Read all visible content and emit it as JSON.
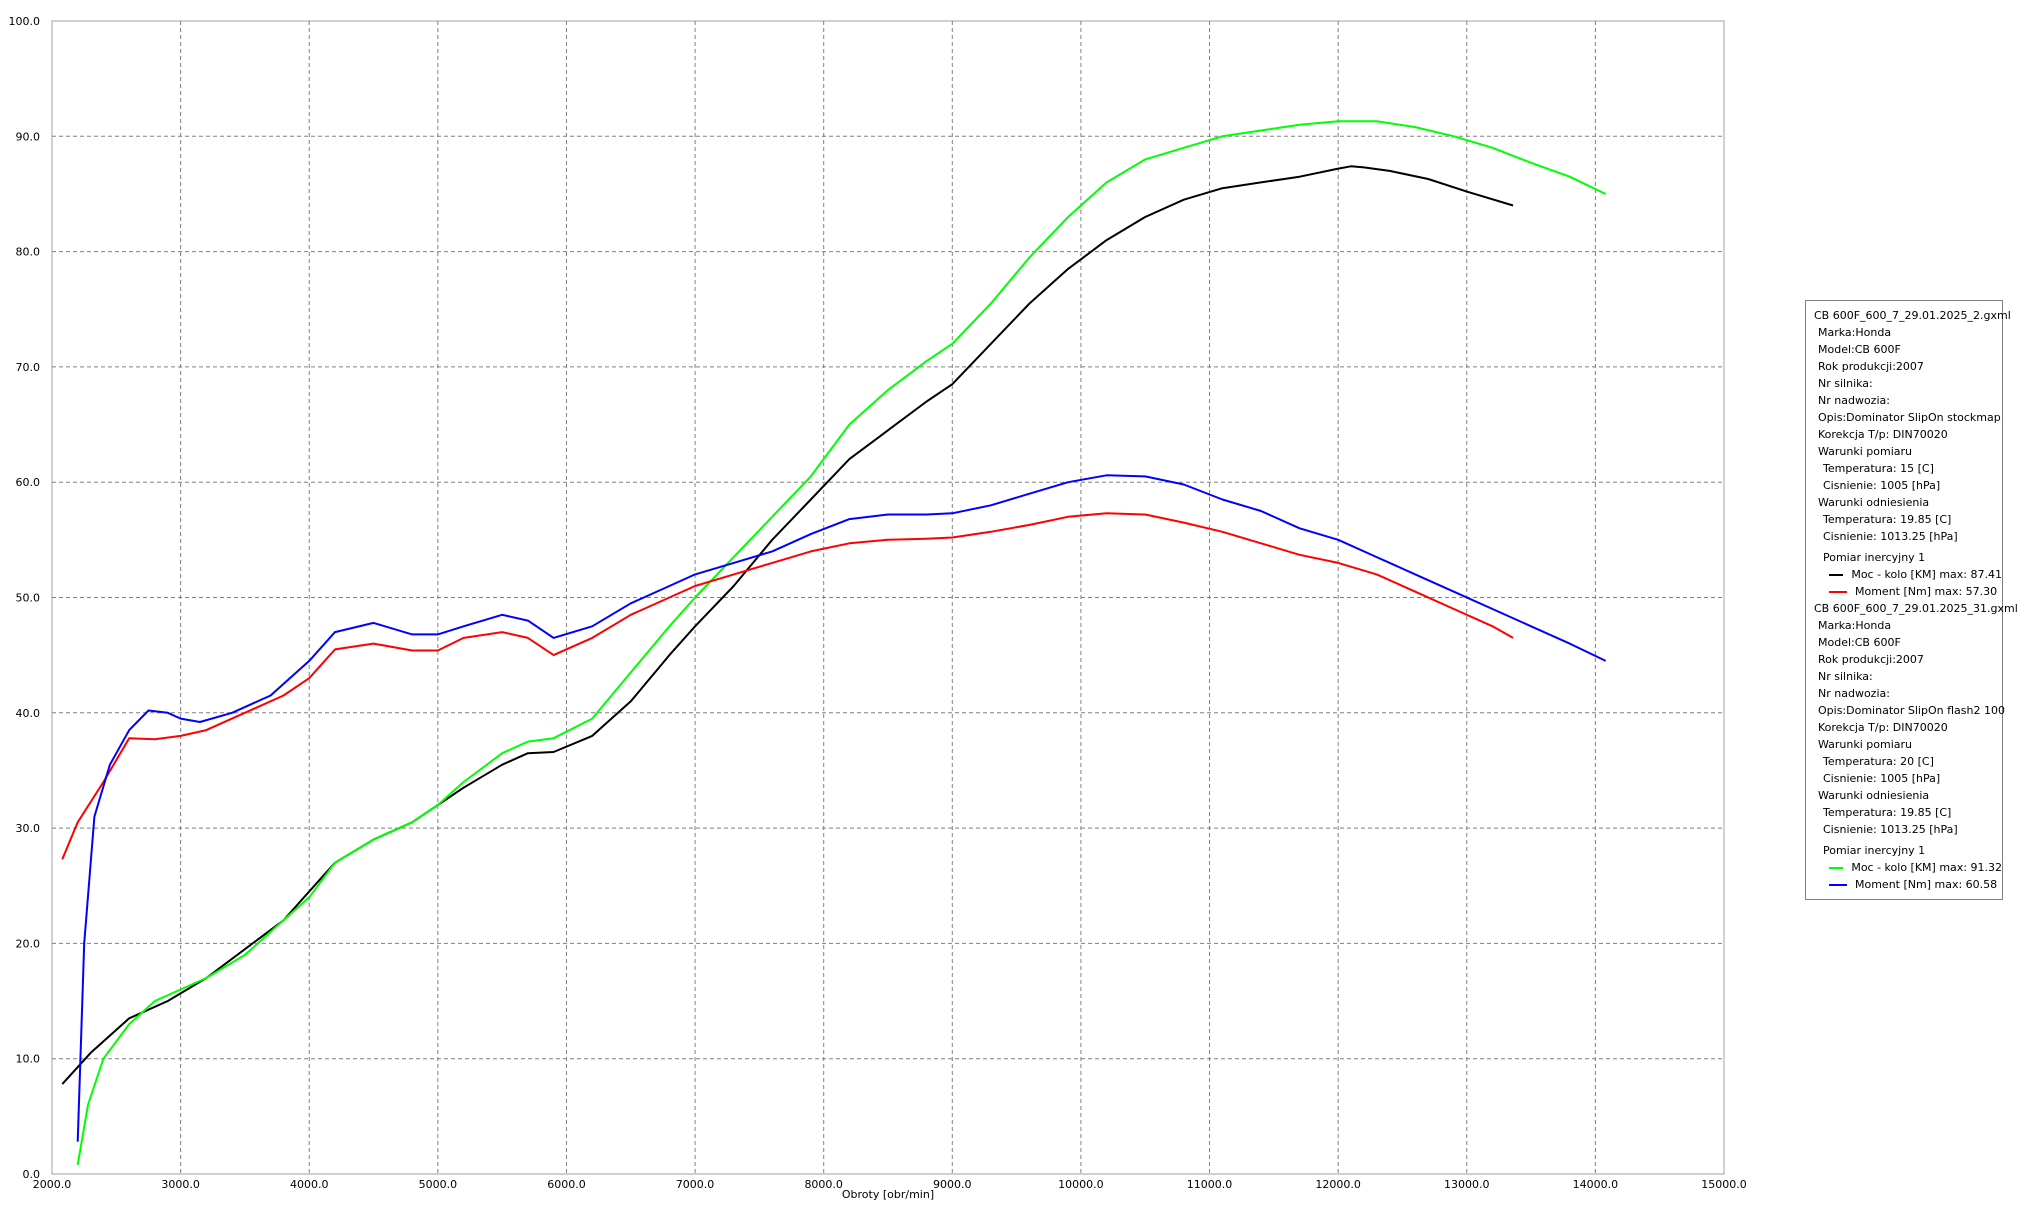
{
  "chart_data": {
    "type": "line",
    "xlabel": "Obroty [obr/min]",
    "ylabel": "",
    "xlim": [
      2000,
      15000
    ],
    "ylim": [
      0,
      100
    ],
    "grid": true,
    "legend_position": "right",
    "x_tick_labels": [
      "2000.0",
      "3000.0",
      "4000.0",
      "5000.0",
      "6000.0",
      "7000.0",
      "8000.0",
      "9000.0",
      "10000.0",
      "11000.0",
      "12000.0",
      "13000.0",
      "14000.0",
      "15000.0"
    ],
    "y_tick_labels": [
      "0.0",
      "10.0",
      "20.0",
      "30.0",
      "40.0",
      "50.0",
      "60.0",
      "70.0",
      "80.0",
      "90.0",
      "100.0"
    ],
    "series": [
      {
        "name": "Moc - kolo [KM] max: 87.41",
        "color": "#000000",
        "x": [
          2080,
          2300,
          2600,
          2900,
          3200,
          3500,
          3800,
          4000,
          4200,
          4500,
          4800,
          5000,
          5200,
          5500,
          5700,
          5900,
          6200,
          6500,
          6800,
          7000,
          7300,
          7600,
          7900,
          8200,
          8500,
          8800,
          9000,
          9300,
          9600,
          9900,
          10200,
          10500,
          10800,
          11100,
          11400,
          11700,
          12000,
          12100,
          12200,
          12400,
          12700,
          13000,
          13360
        ],
        "y": [
          7.8,
          10.5,
          13.5,
          15.0,
          17.0,
          19.5,
          22.0,
          24.5,
          27.0,
          29.0,
          30.5,
          32.0,
          33.5,
          35.5,
          36.5,
          36.6,
          38.0,
          41.0,
          45.0,
          47.5,
          51.0,
          55.0,
          58.5,
          62.0,
          64.5,
          67.0,
          68.5,
          72.0,
          75.5,
          78.5,
          81.0,
          83.0,
          84.5,
          85.5,
          86.0,
          86.5,
          87.2,
          87.4,
          87.3,
          87.0,
          86.3,
          85.2,
          84.0
        ]
      },
      {
        "name": "Moc - kolo [KM] max: 91.32",
        "color": "#00ff00",
        "x": [
          2200,
          2280,
          2400,
          2600,
          2800,
          3000,
          3200,
          3500,
          3800,
          4000,
          4200,
          4500,
          4800,
          5000,
          5200,
          5500,
          5700,
          5900,
          6200,
          6500,
          6800,
          7000,
          7300,
          7600,
          7900,
          8200,
          8500,
          8800,
          9000,
          9300,
          9600,
          9900,
          10200,
          10500,
          10800,
          11100,
          11400,
          11700,
          12000,
          12300,
          12600,
          12900,
          13200,
          13500,
          13800,
          14080
        ],
        "y": [
          0.8,
          6.0,
          10.0,
          13.0,
          15.0,
          16.0,
          17.0,
          19.0,
          22.0,
          24.0,
          27.0,
          29.0,
          30.5,
          32.0,
          34.0,
          36.5,
          37.5,
          37.8,
          39.5,
          43.5,
          47.5,
          50.0,
          53.5,
          57.0,
          60.5,
          65.0,
          68.0,
          70.5,
          72.0,
          75.5,
          79.5,
          83.0,
          86.0,
          88.0,
          89.0,
          90.0,
          90.5,
          91.0,
          91.3,
          91.3,
          90.8,
          90.0,
          89.0,
          87.7,
          86.5,
          85.0
        ]
      },
      {
        "name": "Moment [Nm] max: 57.30",
        "color": "#ff0000",
        "x": [
          2080,
          2200,
          2400,
          2600,
          2800,
          3000,
          3200,
          3500,
          3800,
          4000,
          4200,
          4500,
          4800,
          5000,
          5200,
          5500,
          5700,
          5900,
          6200,
          6500,
          6800,
          7000,
          7300,
          7600,
          7900,
          8200,
          8500,
          8800,
          9000,
          9300,
          9600,
          9900,
          10200,
          10500,
          10800,
          11100,
          11400,
          11700,
          12000,
          12300,
          12600,
          12900,
          13200,
          13360
        ],
        "y": [
          27.3,
          30.5,
          34.0,
          37.8,
          37.7,
          38.0,
          38.5,
          40.0,
          41.5,
          43.0,
          45.5,
          46.0,
          45.4,
          45.4,
          46.5,
          47.0,
          46.5,
          45.0,
          46.5,
          48.5,
          50.0,
          51.0,
          52.0,
          53.0,
          54.0,
          54.7,
          55.0,
          55.1,
          55.2,
          55.7,
          56.3,
          57.0,
          57.3,
          57.2,
          56.5,
          55.7,
          54.7,
          53.7,
          53.0,
          52.0,
          50.5,
          49.0,
          47.5,
          46.5
        ]
      },
      {
        "name": "Moment [Nm] max: 60.58",
        "color": "#0000ff",
        "x": [
          2200,
          2250,
          2330,
          2450,
          2600,
          2750,
          2900,
          3000,
          3150,
          3400,
          3700,
          4000,
          4200,
          4500,
          4800,
          5000,
          5200,
          5500,
          5700,
          5900,
          6200,
          6500,
          6800,
          7000,
          7300,
          7600,
          7900,
          8200,
          8500,
          8800,
          9000,
          9300,
          9600,
          9900,
          10200,
          10500,
          10800,
          11100,
          11400,
          11700,
          12000,
          12300,
          12600,
          12900,
          13200,
          13500,
          13800,
          14080
        ],
        "y": [
          2.8,
          20.0,
          31.0,
          35.5,
          38.5,
          40.2,
          40.0,
          39.5,
          39.2,
          40.0,
          41.5,
          44.5,
          47.0,
          47.8,
          46.8,
          46.8,
          47.5,
          48.5,
          48.0,
          46.5,
          47.5,
          49.5,
          51.0,
          52.0,
          53.0,
          54.0,
          55.5,
          56.8,
          57.2,
          57.2,
          57.3,
          58.0,
          59.0,
          60.0,
          60.6,
          60.5,
          59.8,
          58.5,
          57.5,
          56.0,
          55.0,
          53.5,
          52.0,
          50.5,
          49.0,
          47.5,
          46.0,
          44.5
        ]
      }
    ]
  },
  "legend": {
    "files": [
      {
        "filename": "CB 600F_600_7_29.01.2025_2.gxml",
        "marka": "Marka:Honda",
        "model": "Model:CB 600F",
        "rok": "Rok produkcji:2007",
        "nr_silnika": "Nr silnika:",
        "nr_nadwozia": "Nr nadwozia:",
        "opis": "Opis:Dominator SlipOn stockmap",
        "korekcja": "Korekcja T/p: DIN70020",
        "warunki_pomiaru": "Warunki pomiaru",
        "temperatura_pomiar": "Temperatura: 15 [C]",
        "cisnienie_pomiar": "Cisnienie: 1005 [hPa]",
        "warunki_odniesienia": "Warunki odniesienia",
        "temperatura_odn": "Temperatura: 19.85 [C]",
        "cisnienie_odn": "Cisnienie: 1013.25 [hPa]",
        "pomiar": "Pomiar inercyjny 1",
        "series": [
          {
            "color": "#000000",
            "label": "Moc - kolo [KM] max: 87.41"
          },
          {
            "color": "#ff0000",
            "label": "Moment [Nm] max: 57.30"
          }
        ]
      },
      {
        "filename": "CB 600F_600_7_29.01.2025_31.gxml",
        "marka": "Marka:Honda",
        "model": "Model:CB 600F",
        "rok": "Rok produkcji:2007",
        "nr_silnika": "Nr silnika:",
        "nr_nadwozia": "Nr nadwozia:",
        "opis": "Opis:Dominator SlipOn flash2 100",
        "korekcja": "Korekcja T/p: DIN70020",
        "warunki_pomiaru": "Warunki pomiaru",
        "temperatura_pomiar": "Temperatura: 20 [C]",
        "cisnienie_pomiar": "Cisnienie: 1005 [hPa]",
        "warunki_odniesienia": "Warunki odniesienia",
        "temperatura_odn": "Temperatura: 19.85 [C]",
        "cisnienie_odn": "Cisnienie: 1013.25 [hPa]",
        "pomiar": "Pomiar inercyjny 1",
        "series": [
          {
            "color": "#00ff00",
            "label": "Moc - kolo [KM] max: 91.32"
          },
          {
            "color": "#0000ff",
            "label": "Moment [Nm] max: 60.58"
          }
        ]
      }
    ]
  }
}
